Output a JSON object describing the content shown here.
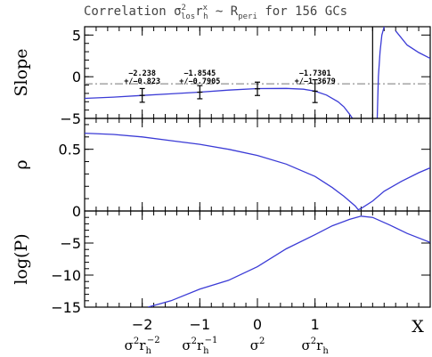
{
  "chart_data": {
    "type": "line",
    "title": "Correlation σ²ₗₒₛ r_hˣ ~ R_peri for 156 GCs",
    "title_parts": {
      "prefix": "Correlation ",
      "sigma": "σ",
      "sigma_sup": "2",
      "sigma_sub": "los",
      "r": "r",
      "r_sub": "h",
      "r_sup": "x",
      "middle": " ~ R",
      "R_sub": "peri",
      "suffix": " for 156 GCs"
    },
    "x_axis": {
      "label": "X",
      "xlim": [
        -3,
        3
      ],
      "ticks": [
        -2,
        -1,
        0,
        1
      ],
      "tick_labels": [
        "−2",
        "−1",
        "0",
        "1"
      ],
      "category_labels": [
        {
          "x": -2,
          "base": "σ",
          "sup1": "2",
          "mid": "r",
          "sub": "h",
          "sup2": "−2"
        },
        {
          "x": -1,
          "base": "σ",
          "sup1": "2",
          "mid": "r",
          "sub": "h",
          "sup2": "−1"
        },
        {
          "x": 0,
          "base": "σ",
          "sup1": "2",
          "mid": "",
          "sub": "",
          "sup2": ""
        },
        {
          "x": 1,
          "base": "σ",
          "sup1": "2",
          "mid": "r",
          "sub": "h",
          "sup2": ""
        }
      ]
    },
    "panels": [
      {
        "ylabel": "Slope",
        "ylim": [
          -5,
          6
        ],
        "yticks": [
          5,
          0,
          -5
        ],
        "ytick_labels": [
          "5",
          "0",
          "−5"
        ],
        "ref_line": {
          "y": -0.85,
          "style": "dash-dot"
        },
        "vline": {
          "x": 2.0
        },
        "series": [
          {
            "x": [
              -3,
              -2.5,
              -2,
              -1.5,
              -1,
              -0.5,
              0,
              0.5,
              0.8,
              1.0,
              1.2,
              1.4,
              1.5,
              1.6,
              1.65
            ],
            "y": [
              -2.6,
              -2.45,
              -2.24,
              -2.05,
              -1.85,
              -1.6,
              -1.42,
              -1.4,
              -1.5,
              -1.73,
              -2.2,
              -3.0,
              -3.6,
              -4.5,
              -5.0
            ]
          },
          {
            "x": [
              2.08,
              2.1,
              2.13,
              2.16,
              2.2,
              2.25
            ],
            "y": [
              -5.0,
              0.0,
              3.0,
              5.0,
              6.0,
              6.2
            ]
          },
          {
            "x": [
              2.4,
              2.6,
              2.8,
              3.0
            ],
            "y": [
              5.5,
              3.8,
              2.9,
              2.2
            ]
          }
        ],
        "errorbars": [
          {
            "x": -2,
            "y": -2.238,
            "err": 0.823
          },
          {
            "x": -1,
            "y": -1.8545,
            "err": 0.7905
          },
          {
            "x": 0,
            "y": -1.45,
            "err": 0.8
          },
          {
            "x": 1,
            "y": -1.7301,
            "err": 1.3679
          }
        ],
        "annotations": [
          {
            "x": -2,
            "lines": [
              "−2.238",
              "+/−0.823"
            ]
          },
          {
            "x": -1,
            "lines": [
              "−1.8545",
              "+/−0.7905"
            ]
          },
          {
            "x": 1,
            "lines": [
              "−1.7301",
              "+/−1.3679"
            ]
          }
        ]
      },
      {
        "ylabel": "ρ",
        "ylim": [
          0,
          0.75
        ],
        "yticks": [
          0.5,
          0
        ],
        "ytick_labels": [
          "0.5",
          "0"
        ],
        "series": [
          {
            "x": [
              -3,
              -2.5,
              -2,
              -1.5,
              -1,
              -0.5,
              0,
              0.5,
              1.0,
              1.3,
              1.5,
              1.7,
              1.75,
              1.8,
              2.0,
              2.2,
              2.5,
              2.8,
              3.0
            ],
            "y": [
              0.63,
              0.62,
              0.6,
              0.57,
              0.54,
              0.5,
              0.45,
              0.38,
              0.28,
              0.19,
              0.12,
              0.04,
              0.01,
              0.02,
              0.08,
              0.16,
              0.24,
              0.31,
              0.35
            ]
          }
        ]
      },
      {
        "ylabel": "log(P)",
        "ylim": [
          -15,
          0
        ],
        "yticks": [
          -5,
          -10,
          -15
        ],
        "ytick_labels": [
          "−5",
          "−10",
          "−15"
        ],
        "series": [
          {
            "x": [
              -1.9,
              -1.5,
              -1,
              -0.5,
              0,
              0.5,
              1.0,
              1.3,
              1.6,
              1.8,
              2.0,
              2.3,
              2.6,
              3.0
            ],
            "y": [
              -15,
              -14.0,
              -12.2,
              -10.8,
              -8.7,
              -5.9,
              -3.7,
              -2.3,
              -1.3,
              -0.8,
              -1.0,
              -2.2,
              -3.5,
              -4.9
            ]
          }
        ]
      }
    ],
    "line_color": "#3b3bd6",
    "errorbar_color": "#000000",
    "grid": false
  }
}
